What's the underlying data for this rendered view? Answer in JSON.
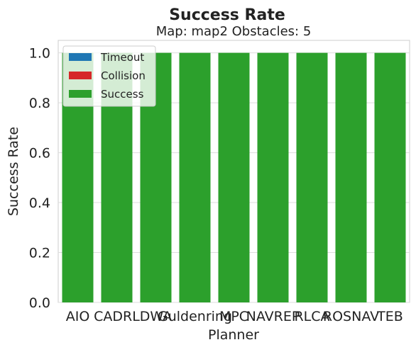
{
  "chart_data": {
    "type": "bar",
    "stacked": true,
    "title": "Success Rate",
    "subtitle": "Map: map2 Obstacles: 5",
    "xlabel": "Planner",
    "ylabel": "Success Rate",
    "categories": [
      "AIO",
      "CADRL",
      "DWA",
      "Guldenring",
      "MPC",
      "NAVREP",
      "RLCA",
      "ROSNAV",
      "TEB"
    ],
    "series": [
      {
        "name": "Timeout",
        "color": "#1f77b4",
        "values": [
          0,
          0,
          0,
          0,
          0,
          0,
          0,
          0,
          0
        ]
      },
      {
        "name": "Collision",
        "color": "#d62728",
        "values": [
          0,
          0,
          0,
          0,
          0,
          0,
          0,
          0,
          0
        ]
      },
      {
        "name": "Success",
        "color": "#2ca02c",
        "values": [
          1,
          1,
          1,
          1,
          1,
          1,
          1,
          1,
          1
        ]
      }
    ],
    "ylim": [
      0,
      1.05
    ],
    "yticks": [
      "0.0",
      "0.2",
      "0.4",
      "0.6",
      "0.8",
      "1.0"
    ],
    "grid": true,
    "legend_position": "top-left"
  }
}
